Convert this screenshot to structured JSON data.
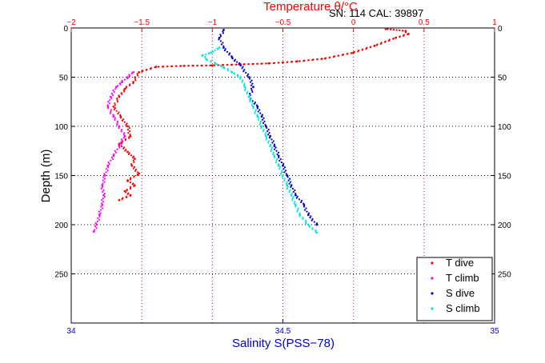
{
  "chart_data": {
    "type": "scatter",
    "title": "Temperature θ/°C",
    "annotation": "SN: 114  CAL: 39897",
    "xlabel": "Salinity S(PSS−78)",
    "ylabel": "Depth (m)",
    "temperature_axis": {
      "range": [
        -2,
        1
      ],
      "ticks": [
        -2,
        -1.5,
        -1,
        -0.5,
        0,
        0.5,
        1
      ],
      "tick_labels": [
        "−2",
        "−1.5",
        "−1",
        "−0.5",
        "0",
        "0.5",
        "1"
      ]
    },
    "salinity_axis": {
      "range": [
        34,
        35
      ],
      "ticks": [
        34,
        34.5,
        35
      ],
      "tick_labels": [
        "34",
        "34.5",
        "35"
      ]
    },
    "depth_axis": {
      "range": [
        0,
        300
      ],
      "reversed": true,
      "ticks": [
        0,
        50,
        100,
        150,
        200,
        250
      ],
      "tick_labels": [
        "0",
        "50",
        "100",
        "150",
        "200",
        "250"
      ]
    },
    "grid": true,
    "legend_position": "bottom-right",
    "series": [
      {
        "name": "T dive",
        "color": "#ff0000",
        "axis": "temperature",
        "x": [
          0.23,
          0.37,
          0.39,
          0.3,
          0.15,
          0.0,
          -0.2,
          -0.4,
          -0.6,
          -0.8,
          -1.0,
          -1.2,
          -1.4,
          -1.52,
          -1.56,
          -1.62,
          -1.66,
          -1.7,
          -1.65,
          -1.6,
          -1.58,
          -1.66,
          -1.6,
          -1.55,
          -1.57,
          -1.52,
          -1.6,
          -1.55,
          -1.62,
          -1.58,
          -1.66
        ],
        "y": [
          1,
          3,
          6,
          10,
          18,
          25,
          31,
          34,
          36,
          37,
          38,
          38.5,
          39.5,
          45,
          55,
          62,
          70,
          80,
          90,
          100,
          110,
          118,
          126,
          133,
          140,
          148,
          155,
          160,
          166,
          170,
          175
        ]
      },
      {
        "name": "T climb",
        "color": "#ff00ff",
        "axis": "temperature",
        "x": [
          -1.84,
          -1.82,
          -1.8,
          -1.78,
          -1.77,
          -1.78,
          -1.76,
          -1.74,
          -1.7,
          -1.66,
          -1.62,
          -1.66,
          -1.7,
          -1.74,
          -1.72,
          -1.68,
          -1.64,
          -1.6,
          -1.56
        ],
        "y": [
          207,
          200,
          190,
          180,
          170,
          160,
          150,
          140,
          130,
          120,
          110,
          100,
          90,
          80,
          70,
          60,
          55,
          50,
          45
        ]
      },
      {
        "name": "S dive",
        "color": "#0000cc",
        "axis": "salinity",
        "x": [
          34.36,
          34.35,
          34.36,
          34.38,
          34.4,
          34.42,
          34.43,
          34.42,
          34.44,
          34.45,
          34.46,
          34.47,
          34.48,
          34.49,
          34.5,
          34.51,
          34.52,
          34.53,
          34.55,
          34.56,
          34.58
        ],
        "y": [
          2,
          10,
          20,
          30,
          38,
          50,
          60,
          70,
          80,
          90,
          100,
          110,
          120,
          130,
          140,
          150,
          160,
          170,
          180,
          190,
          200
        ]
      },
      {
        "name": "S climb",
        "color": "#00e5e5",
        "axis": "salinity",
        "x": [
          34.58,
          34.56,
          34.54,
          34.53,
          34.52,
          34.51,
          34.5,
          34.49,
          34.48,
          34.47,
          34.46,
          34.45,
          34.44,
          34.43,
          34.42,
          34.41,
          34.4,
          34.38,
          34.36,
          34.34,
          34.32,
          34.31,
          34.33,
          34.35
        ],
        "y": [
          208,
          200,
          190,
          180,
          170,
          160,
          150,
          140,
          130,
          120,
          110,
          100,
          90,
          80,
          70,
          60,
          50,
          45,
          40,
          36,
          32,
          28,
          25,
          20
        ]
      }
    ]
  }
}
